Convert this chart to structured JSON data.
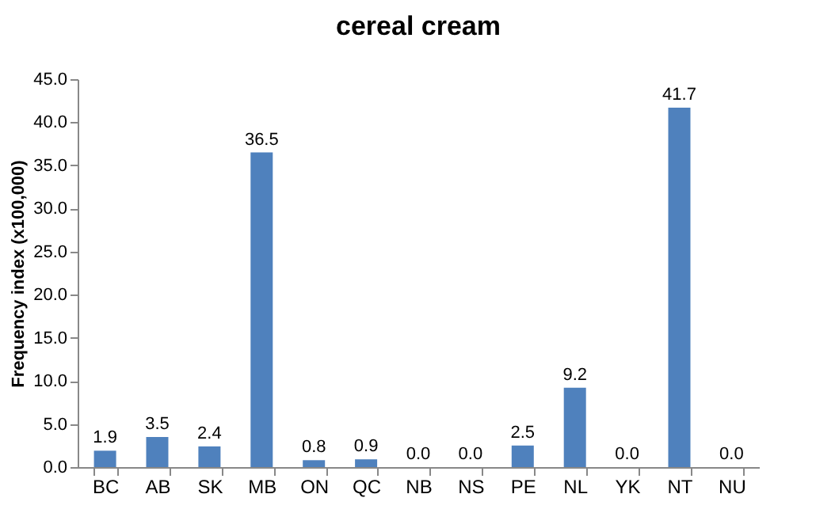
{
  "chart_data": {
    "type": "bar",
    "title": "cereal cream",
    "ylabel": "Frequency index (x100,000)",
    "categories": [
      "BC",
      "AB",
      "SK",
      "MB",
      "ON",
      "QC",
      "NB",
      "NS",
      "PE",
      "NL",
      "YK",
      "NT",
      "NU"
    ],
    "values": [
      1.9,
      3.5,
      2.4,
      36.5,
      0.8,
      0.9,
      0.0,
      0.0,
      2.5,
      9.2,
      0.0,
      41.7,
      0.0
    ],
    "value_labels": [
      "1.9",
      "3.5",
      "2.4",
      "36.5",
      "0.8",
      "0.9",
      "0.0",
      "0.0",
      "2.5",
      "9.2",
      "0.0",
      "41.7",
      "0.0"
    ],
    "color": "#4f81bd",
    "ylim": [
      0,
      45
    ],
    "yticks": [
      {
        "value": 0,
        "label": "0.0"
      },
      {
        "value": 5,
        "label": "5.0"
      },
      {
        "value": 10,
        "label": "10.0"
      },
      {
        "value": 15,
        "label": "15.0"
      },
      {
        "value": 20,
        "label": "20.0"
      },
      {
        "value": 25,
        "label": "25.0"
      },
      {
        "value": 30,
        "label": "30.0"
      },
      {
        "value": 35,
        "label": "35.0"
      },
      {
        "value": 40,
        "label": "40.0"
      },
      {
        "value": 45,
        "label": "45.0"
      }
    ],
    "grid": false
  }
}
